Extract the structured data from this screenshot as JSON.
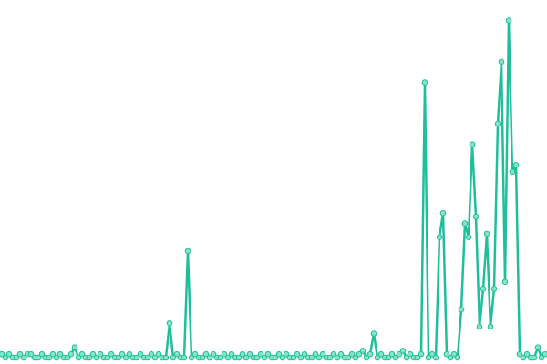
{
  "chart_data": {
    "type": "line",
    "color": "#1fbf9a",
    "marker_color": "#86e3c8",
    "ylim": [
      0,
      100
    ],
    "values": [
      1,
      0,
      1,
      0,
      0,
      1,
      0,
      1,
      1,
      0,
      0,
      1,
      0,
      0,
      1,
      0,
      1,
      0,
      0,
      1,
      3,
      0,
      1,
      0,
      0,
      1,
      0,
      1,
      0,
      0,
      1,
      0,
      0,
      1,
      0,
      1,
      0,
      0,
      1,
      0,
      0,
      1,
      0,
      1,
      0,
      0,
      10,
      0,
      1,
      0,
      0,
      31,
      0,
      1,
      0,
      0,
      1,
      0,
      1,
      0,
      0,
      1,
      0,
      1,
      0,
      0,
      1,
      0,
      1,
      0,
      0,
      1,
      0,
      1,
      0,
      0,
      1,
      0,
      1,
      0,
      0,
      1,
      0,
      1,
      0,
      0,
      1,
      0,
      1,
      0,
      0,
      1,
      0,
      1,
      0,
      0,
      1,
      0,
      1,
      2,
      0,
      1,
      7,
      0,
      1,
      0,
      0,
      1,
      0,
      1,
      2,
      0,
      1,
      0,
      0,
      1,
      80,
      0,
      1,
      0,
      35,
      42,
      1,
      0,
      1,
      0,
      14,
      39,
      35,
      62,
      41,
      9,
      20,
      36,
      9,
      20,
      68,
      86,
      22,
      98,
      54,
      56,
      1,
      0,
      1,
      0,
      0,
      3,
      0,
      1
    ]
  }
}
